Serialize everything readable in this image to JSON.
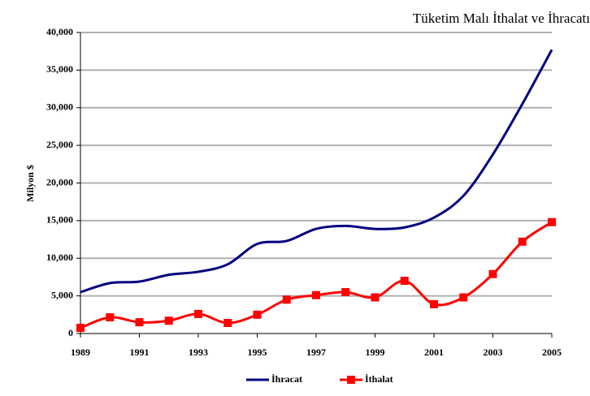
{
  "chart_data": {
    "type": "line",
    "title": "Tüketim Malı İthalat ve İhracatı",
    "ylabel": "Milyon $",
    "x": [
      1989,
      1990,
      1991,
      1992,
      1993,
      1994,
      1995,
      1996,
      1997,
      1998,
      1999,
      2000,
      2001,
      2002,
      2003,
      2004,
      2005
    ],
    "xlim": [
      1989,
      2005
    ],
    "xticks": [
      1989,
      1991,
      1993,
      1995,
      1997,
      1999,
      2001,
      2003,
      2005
    ],
    "ylim": [
      0,
      40000
    ],
    "yticks": [
      0,
      {
        "value": 5000,
        "label": "5,000"
      },
      {
        "value": 10000,
        "label": "10,000"
      },
      {
        "value": 15000,
        "label": "15,000"
      },
      {
        "value": 20000,
        "label": "20,000"
      },
      {
        "value": 25000,
        "label": "25,000"
      },
      {
        "value": 30000,
        "label": "30,000"
      },
      {
        "value": 35000,
        "label": "35,000"
      },
      {
        "value": 40000,
        "label": "40,000"
      }
    ],
    "grid": true,
    "legend": "bottom",
    "series": [
      {
        "name": "İhracat",
        "color": "#000080",
        "marker": false,
        "values": [
          5500,
          6700,
          6900,
          7800,
          8200,
          9200,
          11900,
          12300,
          13900,
          14300,
          13900,
          14100,
          15400,
          18300,
          23800,
          30500,
          37700
        ]
      },
      {
        "name": "İthalat",
        "color": "#ff0000",
        "marker": true,
        "values": [
          750,
          2150,
          1500,
          1700,
          2600,
          1400,
          2500,
          4500,
          5100,
          5500,
          4800,
          7000,
          3900,
          4800,
          7900,
          12200,
          14800
        ]
      }
    ]
  }
}
